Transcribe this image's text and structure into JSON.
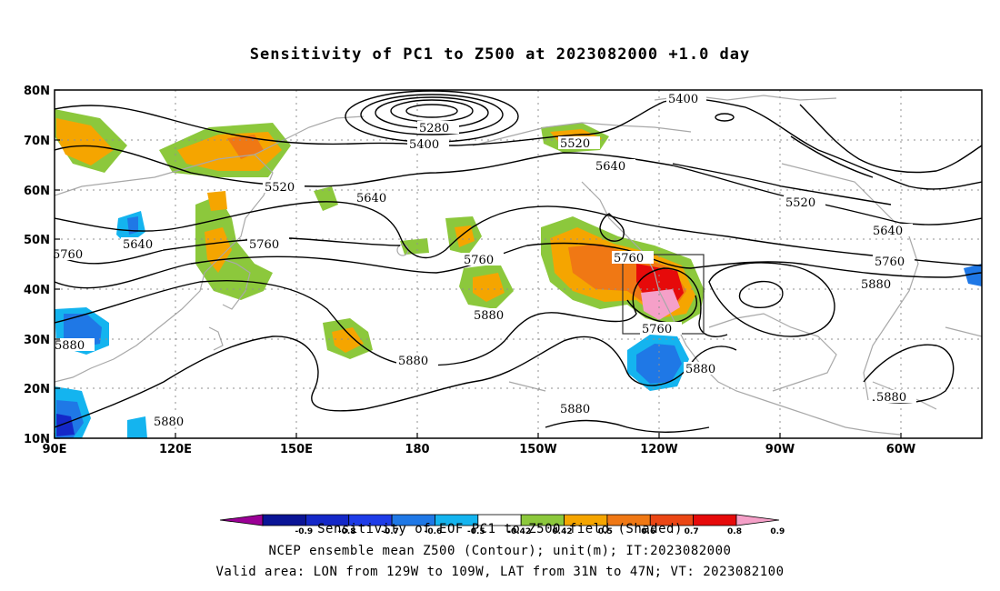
{
  "title": "Sensitivity of PC1 to Z500 at 2023082000 +1.0 day",
  "lat_labels": [
    "80N",
    "70N",
    "60N",
    "50N",
    "40N",
    "30N",
    "20N",
    "10N"
  ],
  "lon_labels": [
    "90E",
    "120E",
    "150E",
    "180",
    "150W",
    "120W",
    "90W",
    "60W"
  ],
  "contour_labels": [
    "5400",
    "5280",
    "5400",
    "5520",
    "5640",
    "5520",
    "5640",
    "5640",
    "5520",
    "5760",
    "5760",
    "5760",
    "5760",
    "5640",
    "5760",
    "5880",
    "5880",
    "5880",
    "5880",
    "5880",
    "5880",
    "5880",
    "5880",
    "5760"
  ],
  "colorbar": {
    "ticks": [
      "-0.9",
      "-0.8",
      "-0.7",
      "-0.6",
      "-0.5",
      "-0.42",
      "0.42",
      "0.5",
      "0.6",
      "0.7",
      "0.8",
      "0.9"
    ],
    "colors": [
      "#9b0096",
      "#0a1496",
      "#1428c8",
      "#1e3ce8",
      "#1f78e6",
      "#14b4ef",
      "#ffffff",
      "#8cc83c",
      "#f5a500",
      "#f07814",
      "#eb4614",
      "#e60a0a",
      "#f5a0c8"
    ]
  },
  "shading_colors": {
    "green": "#8cc83c",
    "orange": "#f5a500",
    "dark_orange": "#f07814",
    "red": "#e60a0a",
    "pink": "#f5a0c8",
    "light_blue": "#14b4ef",
    "blue": "#1f78e6",
    "dark_blue": "#1428c8"
  },
  "footer": {
    "line1": "Sensitivity of EOF PC1 to Z500 field (Shaded)",
    "line2": "NCEP ensemble mean Z500 (Contour); unit(m); IT:2023082000",
    "line3": "Valid area: LON from 129W to 109W, LAT from 31N to 47N; VT: 2023082100"
  }
}
